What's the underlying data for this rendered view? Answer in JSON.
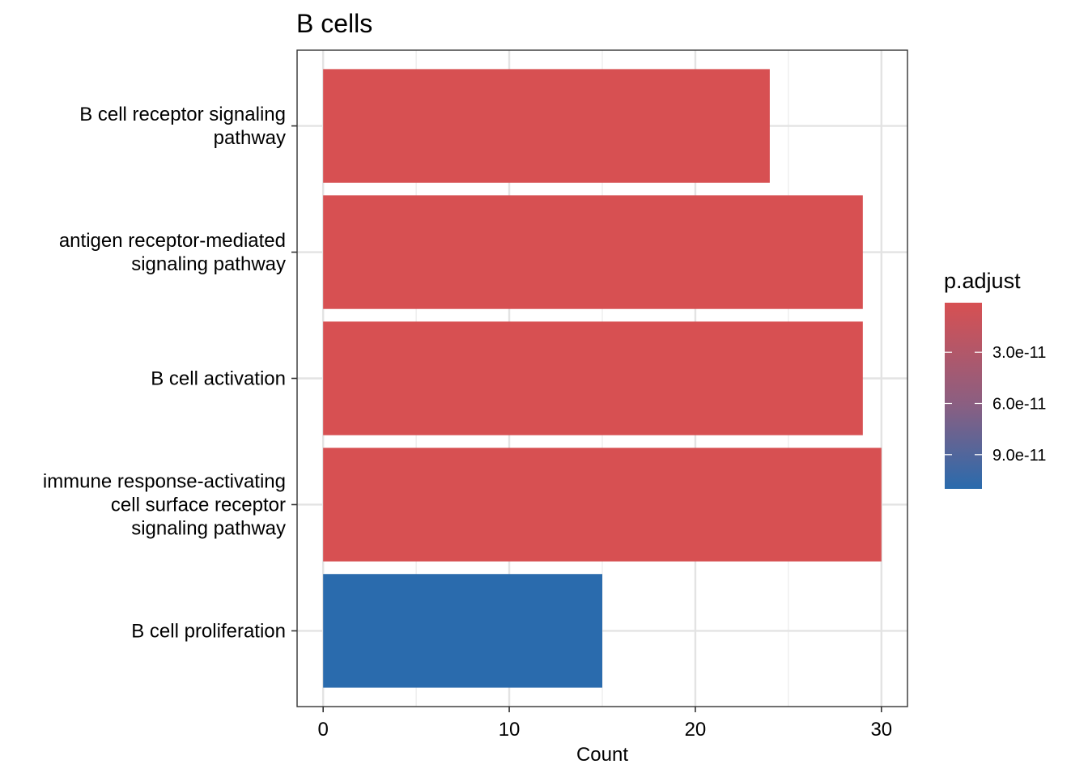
{
  "chart_data": {
    "type": "bar",
    "orientation": "horizontal",
    "title": "B cells",
    "xlabel": "Count",
    "ylabel": "",
    "xlim": [
      -1.4,
      31.4
    ],
    "x_ticks": [
      0,
      10,
      20,
      30
    ],
    "grid": true,
    "categories": [
      "B cell receptor signaling\npathway",
      "antigen receptor-mediated\nsignaling pathway",
      "B cell activation",
      "immune response-activating\ncell surface receptor\nsignaling pathway",
      "B cell proliferation"
    ],
    "values": [
      24,
      29,
      29,
      30,
      15
    ],
    "p_adjust": [
      1e-12,
      1e-12,
      1e-12,
      1e-12,
      1.1e-10
    ],
    "legend": {
      "title": "p.adjust",
      "position": "right",
      "tick_labels": [
        "3.0e-11",
        "6.0e-11",
        "9.0e-11"
      ],
      "tick_values": [
        3e-11,
        6e-11,
        9e-11
      ],
      "range": [
        1e-12,
        1.1e-10
      ],
      "color_low_p": "#D75052",
      "color_high_p": "#2A6BAD",
      "color_mid_p": "#8A5F82"
    }
  }
}
